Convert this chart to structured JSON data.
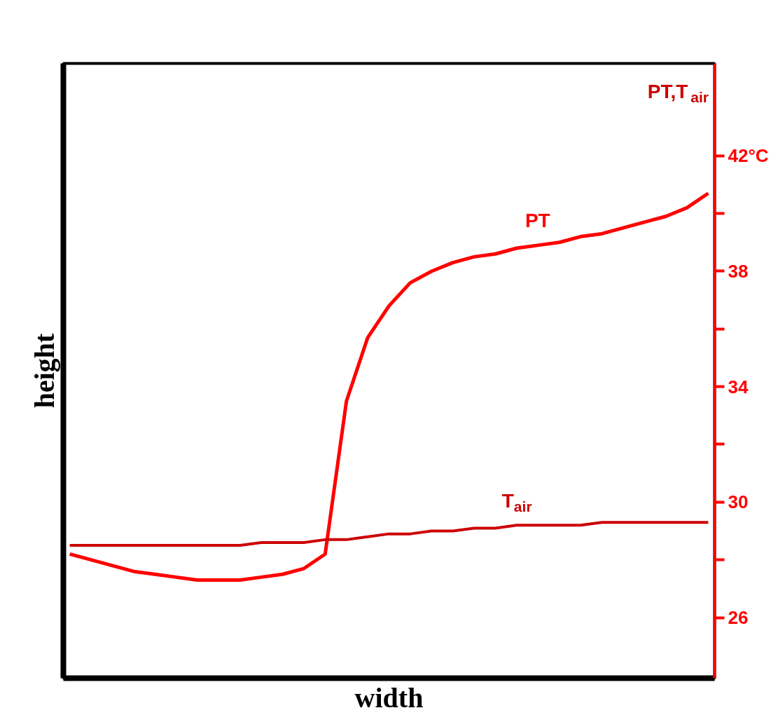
{
  "chart_data": {
    "type": "line",
    "xlabel": "width",
    "ylabel": "PT,T$_{air}$",
    "annotations": [
      "height"
    ],
    "categories": [
      null,
      null,
      null,
      null,
      null,
      null,
      null,
      null,
      null,
      null,
      null,
      null,
      null,
      null,
      null,
      null,
      null,
      null,
      null,
      null,
      null,
      null,
      null,
      null,
      null,
      null,
      null,
      null,
      null,
      null,
      null
    ],
    "ylim": [
      23.9,
      45.2
    ],
    "yticks": [
      26,
      {
        "value": 28,
        "label": null
      },
      30,
      {
        "value": 32,
        "label": null
      },
      34,
      {
        "value": 36,
        "label": null
      },
      38,
      {
        "value": 40,
        "label": null
      },
      {
        "value": 42,
        "label": "42°C"
      }
    ],
    "series": [
      {
        "name": "PT",
        "color": "#ff0000",
        "values": [
          28.2,
          28.0,
          27.8,
          27.6,
          27.5,
          27.4,
          27.3,
          27.3,
          27.3,
          27.4,
          27.5,
          27.7,
          28.2,
          33.5,
          35.7,
          36.8,
          37.6,
          38.0,
          38.3,
          38.5,
          38.6,
          38.8,
          38.9,
          39.0,
          39.2,
          39.3,
          39.5,
          39.7,
          39.9,
          40.2,
          40.7
        ]
      },
      {
        "name": "T$_{air}$",
        "color": "#cc0000",
        "values": [
          28.5,
          28.5,
          28.5,
          28.5,
          28.5,
          28.5,
          28.5,
          28.5,
          28.5,
          28.6,
          28.6,
          28.6,
          28.7,
          28.7,
          28.8,
          28.9,
          28.9,
          29.0,
          29.0,
          29.1,
          29.1,
          29.2,
          29.2,
          29.2,
          29.2,
          29.3,
          29.3,
          29.3,
          29.3,
          29.3,
          29.3
        ]
      }
    ],
    "legend": false,
    "marker": "none",
    "line_style": "solid"
  }
}
